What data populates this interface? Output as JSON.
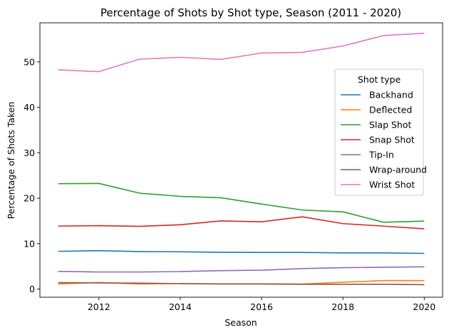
{
  "chart_data": {
    "type": "line",
    "title": "Percentage of Shots by Shot type, Season (2011 - 2020)",
    "xlabel": "Season",
    "ylabel": "Percentage of Shots Taken",
    "x": [
      2011,
      2012,
      2013,
      2014,
      2015,
      2016,
      2017,
      2018,
      2019,
      2020
    ],
    "xlim": [
      2010.55,
      2020.45
    ],
    "ylim": [
      -1.8,
      58.6
    ],
    "xticks": [
      2012,
      2014,
      2016,
      2018,
      2020
    ],
    "yticks": [
      0,
      10,
      20,
      30,
      40,
      50
    ],
    "grid": false,
    "legend": {
      "title": "Shot type",
      "placement": "right"
    },
    "series": [
      {
        "name": "Backhand",
        "color": "#1f77b4",
        "values": [
          8.3,
          8.45,
          8.25,
          8.2,
          8.1,
          8.05,
          8.05,
          7.95,
          7.95,
          7.85
        ]
      },
      {
        "name": "Deflected",
        "color": "#ff7f0e",
        "values": [
          1.1,
          1.45,
          1.1,
          1.2,
          1.15,
          1.15,
          1.1,
          1.5,
          1.85,
          1.85
        ]
      },
      {
        "name": "Slap Shot",
        "color": "#2ca02c",
        "values": [
          23.2,
          23.25,
          21.1,
          20.4,
          20.1,
          18.7,
          17.4,
          17.0,
          14.7,
          14.95
        ]
      },
      {
        "name": "Snap Shot",
        "color": "#d62728",
        "values": [
          13.85,
          13.95,
          13.8,
          14.15,
          15.0,
          14.8,
          15.9,
          14.4,
          13.85,
          13.25
        ]
      },
      {
        "name": "Tip-In",
        "color": "#9467bd",
        "values": [
          3.9,
          3.75,
          3.75,
          3.85,
          4.05,
          4.15,
          4.5,
          4.7,
          4.8,
          4.9
        ]
      },
      {
        "name": "Wrap-around",
        "color": "#8c564b",
        "values": [
          1.4,
          1.35,
          1.3,
          1.2,
          1.1,
          1.1,
          1.05,
          1.05,
          1.05,
          0.95
        ]
      },
      {
        "name": "Wrist Shot",
        "color": "#e377c2",
        "values": [
          48.25,
          47.85,
          50.6,
          51.0,
          50.55,
          51.95,
          52.1,
          53.5,
          55.8,
          56.3
        ]
      }
    ]
  }
}
